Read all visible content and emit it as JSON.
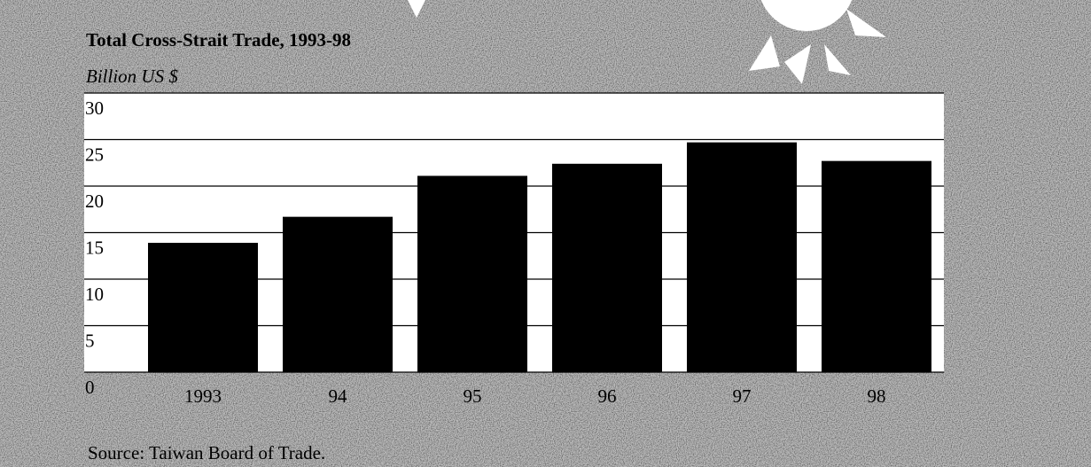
{
  "chart_data": {
    "type": "bar",
    "title": "Total Cross-Strait Trade, 1993-98",
    "subtitle": "Billion US $",
    "source": "Source: Taiwan Board of Trade.",
    "categories": [
      "1993",
      "94",
      "95",
      "96",
      "97",
      "98"
    ],
    "values": [
      13.9,
      16.7,
      21.1,
      22.4,
      24.7,
      22.7
    ],
    "color": "#000000",
    "ylim": [
      0,
      30
    ],
    "yticks": [
      0,
      5,
      10,
      15,
      20,
      25,
      30
    ],
    "grid": true
  }
}
